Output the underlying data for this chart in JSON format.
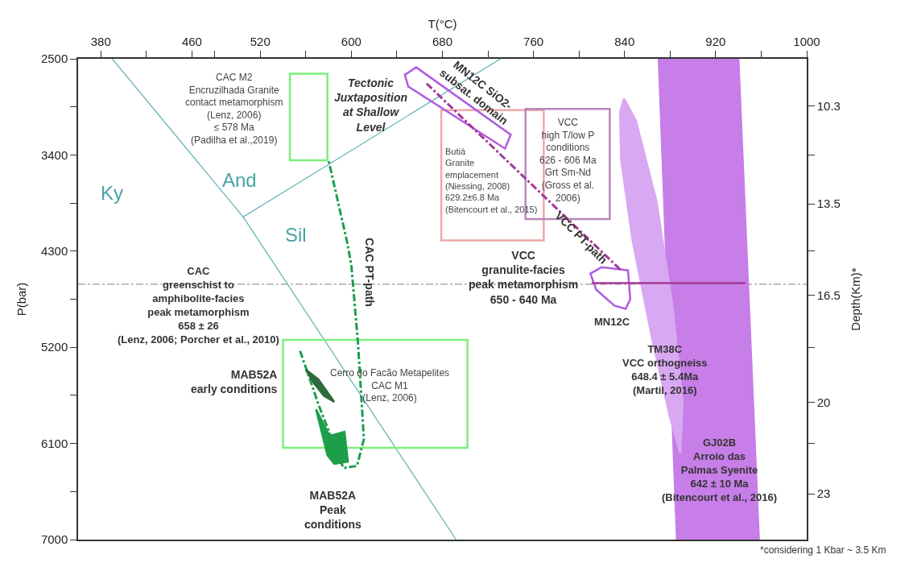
{
  "chart_data": {
    "type": "line",
    "xlabel": "T(°C)",
    "ylabel": "P(bar)",
    "y2label": "Depth(Km)*",
    "xlim": [
      360,
      1000
    ],
    "xticks": [
      380,
      {
        "value": 420,
        "label": null
      },
      460,
      {
        "value": 480,
        "label": null
      },
      520,
      {
        "value": 560,
        "label": null
      },
      600,
      {
        "value": 640,
        "label": null
      },
      680,
      {
        "value": 720,
        "label": null
      },
      760,
      {
        "value": 800,
        "label": null
      },
      840,
      {
        "value": 880,
        "label": null
      },
      920,
      {
        "value": 960,
        "label": null
      },
      1000
    ],
    "ylim": [
      7000,
      2500
    ],
    "yticks": [
      2500,
      {
        "value": 2950,
        "label": null
      },
      3400,
      {
        "value": 3850,
        "label": null
      },
      4300,
      {
        "value": 4750,
        "label": null
      },
      5200,
      {
        "value": 5650,
        "label": null
      },
      6100,
      {
        "value": 6550,
        "label": null
      },
      7000
    ],
    "y2lim": [
      24.5,
      8.75
    ],
    "y2ticks": [
      10.3,
      {
        "value": 11.9,
        "label": null
      },
      13.5,
      {
        "value": 15.05,
        "label": null
      },
      16.5,
      {
        "value": 18.2,
        "label": null
      },
      20,
      {
        "value": 21.35,
        "label": null
      },
      23
    ],
    "grid": false,
    "ref_lines": [
      {
        "axis": "y",
        "value": 4610,
        "color": "#9a9a9a",
        "line_style": "dashed"
      }
    ],
    "series": [
      {
        "color": "#5fb0b4",
        "x": [
          390,
          505,
          731,
          null,
          505,
          692
        ],
        "values": [
          2500,
          3980,
          2500,
          null,
          3980,
          7000
        ]
      },
      {
        "type": "area",
        "color": "#c77ee8",
        "x": [
          870,
          940,
          958,
          886,
          870
        ],
        "values": [
          2500,
          2500,
          7000,
          7000,
          2500
        ]
      },
      {
        "type": "area",
        "color": "#d9a8f2",
        "x": [
          839.5,
          850,
          868,
          882,
          891,
          889,
          880,
          864,
          847,
          837,
          836,
          839.5
        ],
        "values": [
          2870,
          3080,
          3830,
          4810,
          5710,
          6190,
          5860,
          5110,
          4200,
          3450,
          3000,
          2870
        ]
      },
      {
        "color": "#7ded7d",
        "x": [
          546,
          579,
          579,
          546,
          546,
          579
        ],
        "values": [
          2640,
          2640,
          3450,
          3450,
          2640,
          2640
        ]
      },
      {
        "color": "#7ded7d",
        "x": [
          540,
          702,
          702,
          540,
          540,
          702
        ],
        "values": [
          5130,
          5130,
          6140,
          6140,
          5130,
          5130
        ]
      },
      {
        "color": "#f0a8a8",
        "x": [
          679,
          769,
          769,
          679,
          679,
          769
        ],
        "values": [
          2980,
          2980,
          4200,
          4200,
          2980,
          2980
        ]
      },
      {
        "color": "#b888b8",
        "x": [
          753,
          827,
          827,
          753,
          753,
          827
        ],
        "values": [
          2970,
          2970,
          4000,
          4000,
          2970,
          2970
        ]
      },
      {
        "color": "#b05ce0",
        "x": [
          647,
          657,
          740,
          735,
          650,
          647,
          657
        ],
        "values": [
          2650,
          2580,
          3210,
          3340,
          2760,
          2650,
          2580
        ]
      },
      {
        "color": "#b05ce0",
        "x": [
          810,
          820,
          843,
          845,
          841,
          831,
          815,
          810,
          820
        ],
        "values": [
          4510,
          4450,
          4480,
          4750,
          4840,
          4810,
          4660,
          4510,
          4450
        ]
      },
      {
        "color": "#a33a98",
        "line_style": "dashed",
        "x": [
          836,
          665
        ],
        "values": [
          4470,
          2720
        ]
      },
      {
        "color": "#a33a98",
        "x": [
          811,
          946
        ],
        "values": [
          4600,
          4600
        ]
      },
      {
        "color": "#1a9e50",
        "line_style": "dashed",
        "x": [
          555,
          572,
          593,
          605,
          611,
          606,
          600,
          596,
          580
        ],
        "values": [
          5235,
          5760,
          6330,
          6310,
          6060,
          5180,
          4430,
          4200,
          3450
        ]
      },
      {
        "type": "area",
        "color": "#2e6b3a",
        "x": [
          560,
          571,
          585,
          576,
          567,
          560
        ],
        "values": [
          5410,
          5500,
          5710,
          5655,
          5535,
          5410
        ]
      },
      {
        "type": "area",
        "color": "#1f9e4a",
        "x": [
          569,
          581,
          594,
          597,
          585,
          579,
          569
        ],
        "values": [
          5780,
          6030,
          5990,
          6270,
          6290,
          6210,
          5780
        ]
      }
    ],
    "annotations": [
      "CAC M2\nEncruzilhada Granite\ncontact metamorphism\n(Lenz, 2006)\n≤ 578 Ma\n(Padilha et al.,2019)",
      "Tectonic\nJuxtaposition\nat Shallow\nLevel",
      "MN12C SiO2-\nsubsat. domain",
      "Butiá\nGranite\nemplacement\n(Niessing, 2008)\n629.2±6.8 Ma\n(Bitencourt et al., 2015)",
      "VCC\nhigh T/low P\nconditions\n626 - 606 Ma\nGrt Sm-Nd\n(Gross et al.\n2006)",
      "VCC PT-path",
      "CAC PT-path",
      "Ky",
      "And",
      "Sil",
      "CAC\ngreenschist to\namphibolite-facies\npeak metamorphism\n658 ± 26\n(Lenz, 2006; Porcher et al., 2010)",
      "VCC\ngranulite-facies\npeak metamorphism\n650 - 640 Ma",
      "MN12C",
      "TM38C\nVCC orthogneiss\n648.4 ± 5.4Ma\n(Martil, 2016)",
      "GJ02B\nArroio das\nPalmas Syenite\n642 ± 10 Ma\n(Bitencourt et al., 2016)",
      "Cerro do Facão Metapelites\nCAC M1\n(Lenz, 2006)",
      "MAB52A\nearly conditions",
      "MAB52A\nPeak\nconditions",
      "*considering 1 Kbar ~ 3.5 Km"
    ]
  }
}
